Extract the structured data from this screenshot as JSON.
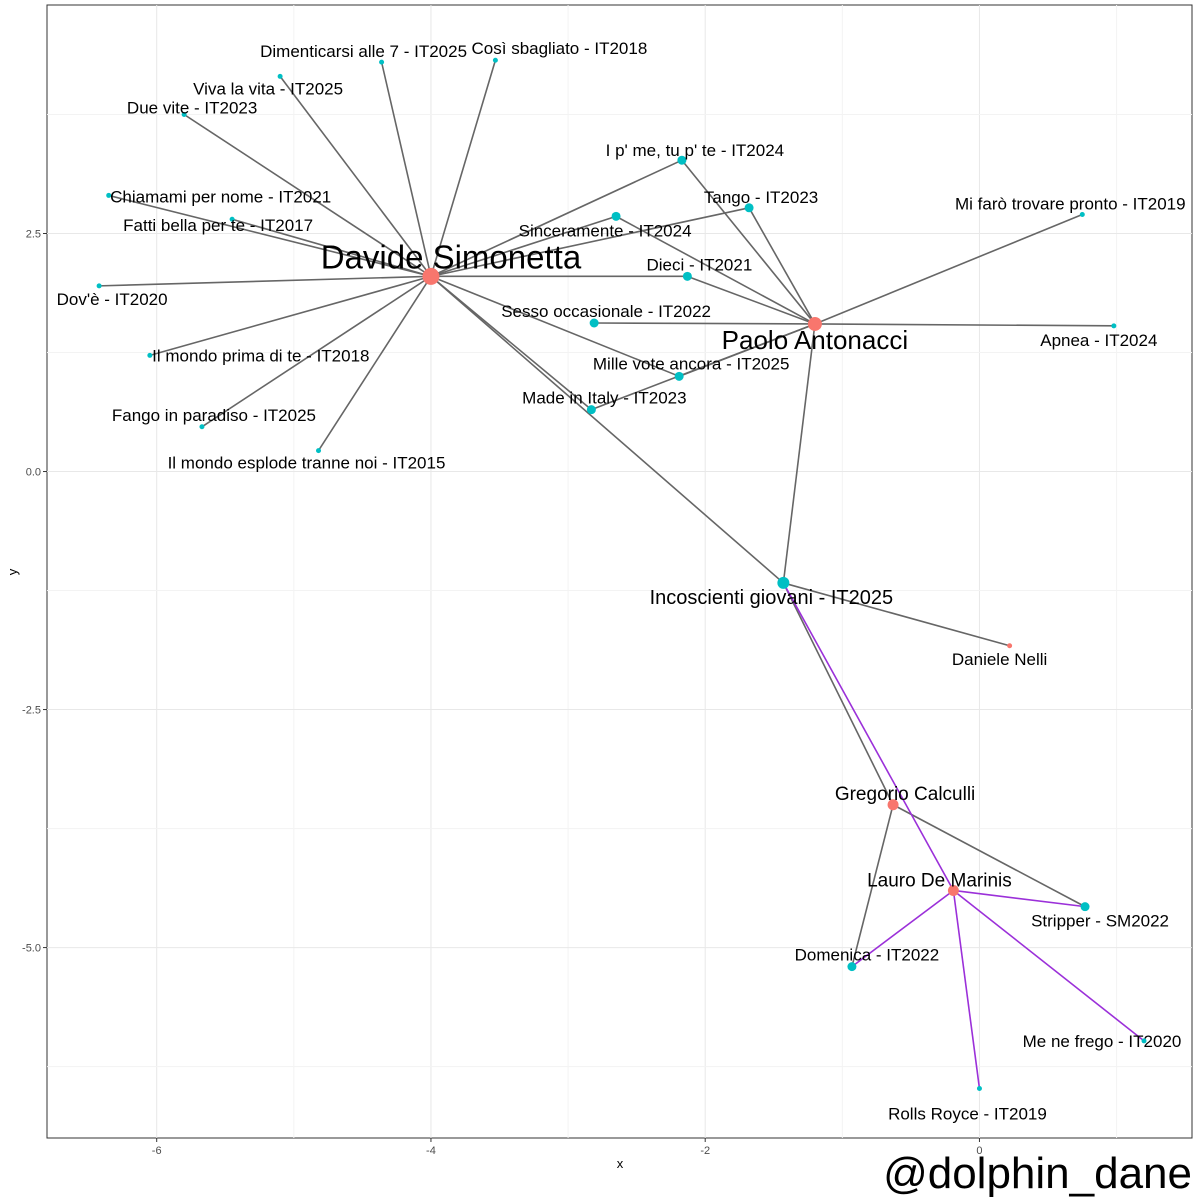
{
  "watermark": "@dolphin_dane",
  "chart_data": {
    "type": "scatter",
    "xlabel": "x",
    "ylabel": "y",
    "xlim": [
      -6.8,
      1.55
    ],
    "ylim": [
      -7.0,
      4.9
    ],
    "x_ticks": [
      -6,
      -4,
      -2,
      0
    ],
    "y_ticks": [
      2.5,
      0.0,
      -2.5,
      -5.0
    ],
    "x_tick_labels": [
      "-6",
      "-4",
      "-2",
      "0"
    ],
    "y_tick_labels": [
      "2.5",
      "0.0",
      "-2.5",
      "-5.0"
    ],
    "grid": true,
    "colors": {
      "artist": "#F8766D",
      "song": "#00BFC4",
      "edge": "#666666",
      "edge_highlight": "#9B30D9"
    },
    "nodes": [
      {
        "id": "davide",
        "label": "Davide Simonetta",
        "group": "artist",
        "size": "xl",
        "x": -4.0,
        "y": 2.05
      },
      {
        "id": "paolo",
        "label": "Paolo Antonacci",
        "group": "artist",
        "size": "l",
        "x": -1.2,
        "y": 1.55
      },
      {
        "id": "gregorio",
        "label": "Gregorio Calculli",
        "group": "artist",
        "size": "m",
        "x": -0.63,
        "y": -3.5
      },
      {
        "id": "lauro",
        "label": "Lauro De Marinis",
        "group": "artist",
        "size": "m",
        "x": -0.19,
        "y": -4.4
      },
      {
        "id": "daniele",
        "label": "Daniele Nelli",
        "group": "artist",
        "size": "s",
        "x": 0.22,
        "y": -1.83
      },
      {
        "id": "incoscienti",
        "label": "Incoscienti giovani - IT2025",
        "group": "song",
        "size": "ml",
        "x": -1.43,
        "y": -1.17
      },
      {
        "id": "stripper",
        "label": "Stripper - SM2022",
        "group": "song",
        "size": "sm",
        "x": 0.77,
        "y": -4.57
      },
      {
        "id": "domenica",
        "label": "Domenica - IT2022",
        "group": "song",
        "size": "sm",
        "x": -0.93,
        "y": -5.2
      },
      {
        "id": "meneFrego",
        "label": "Me ne frego - IT2020",
        "group": "song",
        "size": "s",
        "x": 1.2,
        "y": -5.98
      },
      {
        "id": "rolls",
        "label": "Rolls Royce - IT2019",
        "group": "song",
        "size": "s",
        "x": 0.0,
        "y": -6.48
      },
      {
        "id": "ipme",
        "label": "I p' me, tu p' te - IT2024",
        "group": "song",
        "size": "sm",
        "x": -2.17,
        "y": 3.27
      },
      {
        "id": "tango",
        "label": "Tango - IT2023",
        "group": "song",
        "size": "sm",
        "x": -1.68,
        "y": 2.77
      },
      {
        "id": "sinceramente",
        "label": "Sinceramente - IT2024",
        "group": "song",
        "size": "sm",
        "x": -2.65,
        "y": 2.68
      },
      {
        "id": "dieci",
        "label": "Dieci - IT2021",
        "group": "song",
        "size": "sm",
        "x": -2.13,
        "y": 2.05
      },
      {
        "id": "sesso",
        "label": "Sesso occasionale - IT2022",
        "group": "song",
        "size": "sm",
        "x": -2.81,
        "y": 1.56
      },
      {
        "id": "millevote",
        "label": "Mille vote ancora - IT2025",
        "group": "song",
        "size": "sm",
        "x": -2.19,
        "y": 1.0
      },
      {
        "id": "madeinitaly",
        "label": "Made in Italy - IT2023",
        "group": "song",
        "size": "sm",
        "x": -2.83,
        "y": 0.65
      },
      {
        "id": "mifaro",
        "label": "Mi farò trovare pronto - IT2019",
        "group": "song",
        "size": "s",
        "x": 0.75,
        "y": 2.7
      },
      {
        "id": "apnea",
        "label": "Apnea - IT2024",
        "group": "song",
        "size": "s",
        "x": 0.98,
        "y": 1.53
      },
      {
        "id": "dimenticarsi",
        "label": "Dimenticarsi alle 7 - IT2025",
        "group": "song",
        "size": "s",
        "x": -4.36,
        "y": 4.3
      },
      {
        "id": "cosi",
        "label": "Così sbagliato - IT2018",
        "group": "song",
        "size": "s",
        "x": -3.53,
        "y": 4.32
      },
      {
        "id": "vivalavita",
        "label": "Viva la vita - IT2025",
        "group": "song",
        "size": "s",
        "x": -5.1,
        "y": 4.15
      },
      {
        "id": "duevite",
        "label": "Due vite - IT2023",
        "group": "song",
        "size": "s",
        "x": -5.8,
        "y": 3.75
      },
      {
        "id": "chiamami",
        "label": "Chiamami per nome - IT2021",
        "group": "song",
        "size": "s",
        "x": -6.35,
        "y": 2.9
      },
      {
        "id": "fattibella",
        "label": "Fatti bella per te - IT2017",
        "group": "song",
        "size": "s",
        "x": -5.45,
        "y": 2.65
      },
      {
        "id": "dove",
        "label": "Dov'è - IT2020",
        "group": "song",
        "size": "s",
        "x": -6.42,
        "y": 1.95
      },
      {
        "id": "ilmondoprima",
        "label": "Il mondo prima di te - IT2018",
        "group": "song",
        "size": "s",
        "x": -6.05,
        "y": 1.22
      },
      {
        "id": "fango",
        "label": "Fango in paradiso - IT2025",
        "group": "song",
        "size": "s",
        "x": -5.67,
        "y": 0.47
      },
      {
        "id": "ilmondoesplode",
        "label": "Il mondo esplode tranne noi - IT2015",
        "group": "song",
        "size": "s",
        "x": -4.82,
        "y": 0.22
      }
    ],
    "edges": [
      [
        "davide",
        "dimenticarsi",
        "edge"
      ],
      [
        "davide",
        "cosi",
        "edge"
      ],
      [
        "davide",
        "vivalavita",
        "edge"
      ],
      [
        "davide",
        "duevite",
        "edge"
      ],
      [
        "davide",
        "chiamami",
        "edge"
      ],
      [
        "davide",
        "fattibella",
        "edge"
      ],
      [
        "davide",
        "dove",
        "edge"
      ],
      [
        "davide",
        "ilmondoprima",
        "edge"
      ],
      [
        "davide",
        "fango",
        "edge"
      ],
      [
        "davide",
        "ilmondoesplode",
        "edge"
      ],
      [
        "davide",
        "sinceramente",
        "edge"
      ],
      [
        "davide",
        "tango",
        "edge"
      ],
      [
        "davide",
        "ipme",
        "edge"
      ],
      [
        "davide",
        "dieci",
        "edge"
      ],
      [
        "davide",
        "millevote",
        "edge"
      ],
      [
        "davide",
        "madeinitaly",
        "edge"
      ],
      [
        "davide",
        "incoscienti",
        "edge"
      ],
      [
        "paolo",
        "ipme",
        "edge"
      ],
      [
        "paolo",
        "tango",
        "edge"
      ],
      [
        "paolo",
        "sinceramente",
        "edge"
      ],
      [
        "paolo",
        "dieci",
        "edge"
      ],
      [
        "paolo",
        "sesso",
        "edge"
      ],
      [
        "paolo",
        "millevote",
        "edge"
      ],
      [
        "paolo",
        "madeinitaly",
        "edge"
      ],
      [
        "paolo",
        "mifaro",
        "edge"
      ],
      [
        "paolo",
        "apnea",
        "edge"
      ],
      [
        "paolo",
        "incoscienti",
        "edge"
      ],
      [
        "incoscienti",
        "daniele",
        "edge"
      ],
      [
        "incoscienti",
        "gregorio",
        "edge"
      ],
      [
        "gregorio",
        "stripper",
        "edge"
      ],
      [
        "gregorio",
        "domenica",
        "edge"
      ],
      [
        "incoscienti",
        "lauro",
        "edge_highlight"
      ],
      [
        "lauro",
        "domenica",
        "edge_highlight"
      ],
      [
        "lauro",
        "stripper",
        "edge_highlight"
      ],
      [
        "lauro",
        "meneFrego",
        "edge_highlight"
      ],
      [
        "lauro",
        "rolls",
        "edge_highlight"
      ]
    ]
  }
}
